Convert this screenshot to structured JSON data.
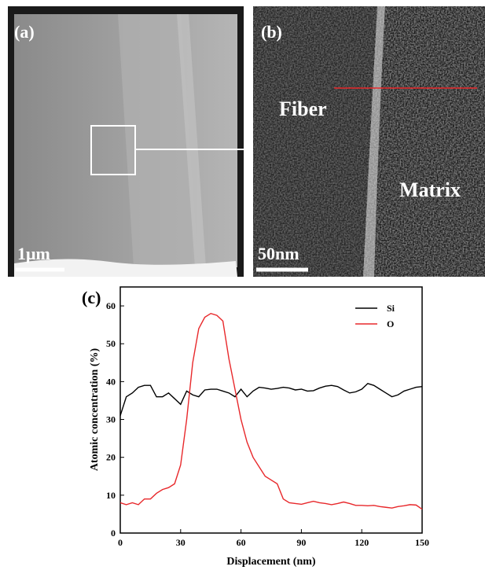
{
  "panels": [
    {
      "label": "(a)",
      "scale_bar": "1μm"
    },
    {
      "label": "(b)",
      "scale_bar": "50nm",
      "annotations": [
        "Fiber",
        "Matrix"
      ]
    }
  ],
  "chart_data": {
    "type": "line",
    "label": "(c)",
    "x_label": "Displacement (nm)",
    "y_label": "Atomic concentration (%)",
    "x": [
      0,
      3,
      6,
      9,
      12,
      15,
      18,
      21,
      24,
      27,
      30,
      33,
      36,
      39,
      42,
      45,
      48,
      51,
      54,
      57,
      60,
      63,
      66,
      69,
      72,
      75,
      78,
      81,
      84,
      87,
      90,
      93,
      96,
      99,
      102,
      105,
      108,
      111,
      114,
      117,
      120,
      123,
      126,
      129,
      132,
      135,
      138,
      141,
      144,
      147,
      150
    ],
    "series": [
      {
        "name": "Si",
        "color": "#000000",
        "values": [
          31,
          36,
          37,
          38.5,
          39,
          39,
          36,
          36,
          37,
          35.5,
          34,
          37.5,
          36.5,
          36,
          37.8,
          38,
          38,
          37.5,
          37,
          36,
          38,
          36,
          37.5,
          38.5,
          38.3,
          38,
          38.2,
          38.5,
          38.3,
          37.8,
          38,
          37.5,
          37.6,
          38.3,
          38.8,
          39,
          38.7,
          37.8,
          37,
          37.3,
          38,
          39.5,
          39,
          38,
          37,
          36,
          36.5,
          37.5,
          38,
          38.5,
          38.7
        ]
      },
      {
        "name": "O",
        "color": "#e8282b",
        "values": [
          8,
          7.5,
          8,
          7.5,
          9,
          9,
          10.5,
          11.5,
          12,
          13,
          18,
          30,
          45,
          54,
          57,
          58,
          57.5,
          56,
          46,
          38,
          30,
          24,
          20,
          17.5,
          15,
          14,
          13,
          9,
          8,
          7.8,
          7.6,
          8,
          8.4,
          8,
          7.8,
          7.5,
          7.8,
          8.2,
          7.8,
          7.3,
          7.3,
          7.2,
          7.3,
          7,
          6.8,
          6.6,
          7,
          7.2,
          7.5,
          7.4,
          6.3
        ]
      }
    ],
    "xlim": [
      0,
      150
    ],
    "xticks": [
      0,
      30,
      60,
      90,
      120,
      150
    ],
    "ylim": [
      0,
      65
    ],
    "yticks": [
      0,
      10,
      20,
      30,
      40,
      50,
      60
    ],
    "legend": "upper right"
  }
}
